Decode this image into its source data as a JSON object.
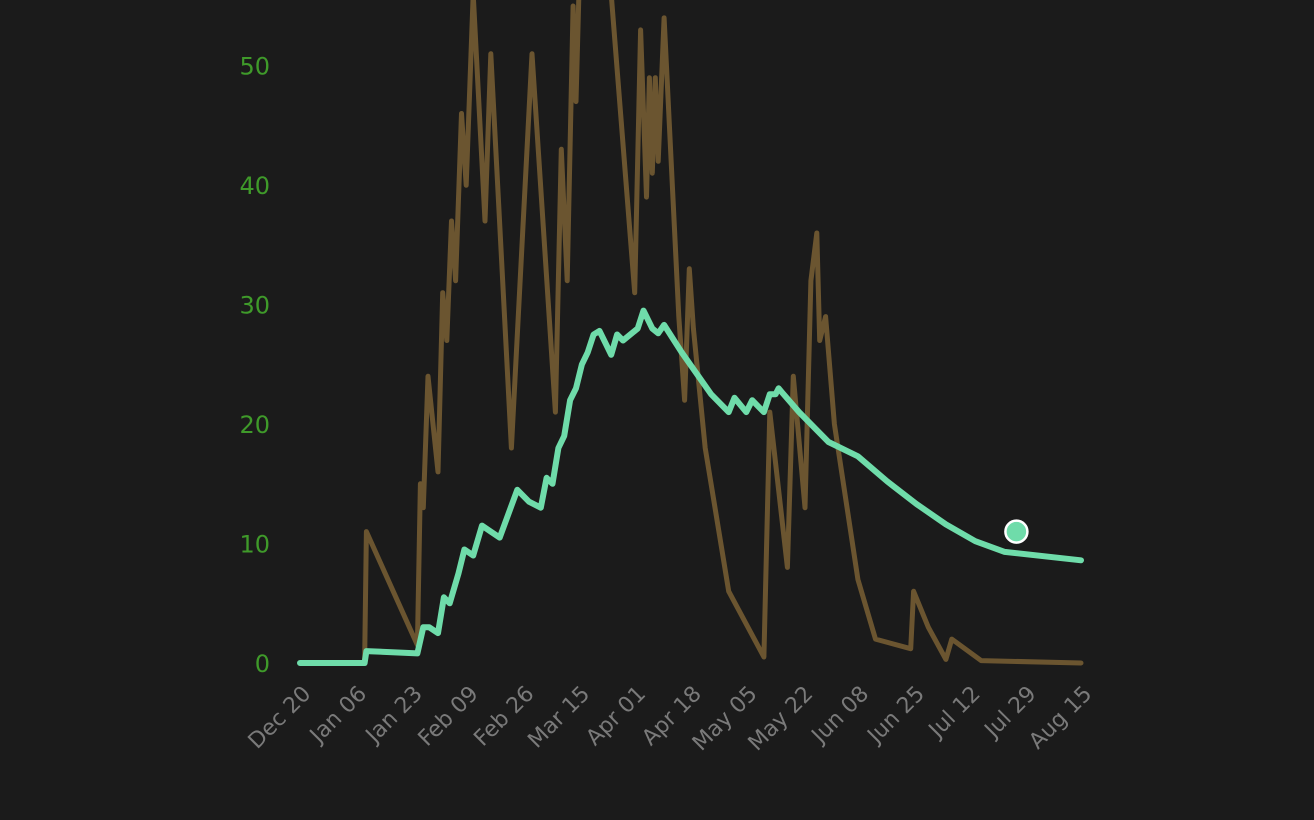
{
  "chart_data": {
    "type": "line",
    "title": "",
    "xlabel": "",
    "ylabel": "",
    "ylim": [
      0,
      55
    ],
    "yticks": [
      0,
      10,
      20,
      30,
      40,
      50
    ],
    "x_tick_labels": [
      "Dec 20",
      "Jan 06",
      "Jan 23",
      "Feb 09",
      "Feb 26",
      "Mar 15",
      "Apr 01",
      "Apr 18",
      "May 05",
      "May 22",
      "Jun 08",
      "Jun 25",
      "Jul 12",
      "Jul 29",
      "Aug 15"
    ],
    "grid": false,
    "legend": "none",
    "colors": {
      "daily": "#6b5530",
      "smoothed": "#6fdcaa",
      "ytick": "#3f9a2a",
      "xtick": "#7a7a7a",
      "background": "#1b1b1b",
      "marker": "#ffffff"
    },
    "series": [
      {
        "role": "daily",
        "points": [
          [
            0,
            0
          ],
          [
            11,
            0
          ],
          [
            11.3,
            11
          ],
          [
            20,
            1.5
          ],
          [
            20.5,
            15
          ],
          [
            21,
            13
          ],
          [
            21.8,
            24
          ],
          [
            23.5,
            16
          ],
          [
            24.3,
            31
          ],
          [
            25,
            27
          ],
          [
            25.8,
            37
          ],
          [
            26.5,
            32
          ],
          [
            27.5,
            46
          ],
          [
            28.3,
            40
          ],
          [
            29.5,
            56
          ],
          [
            31.5,
            37
          ],
          [
            32.5,
            51
          ],
          [
            36,
            18
          ],
          [
            39.5,
            51
          ],
          [
            43.5,
            21
          ],
          [
            44.5,
            43
          ],
          [
            45.5,
            32
          ],
          [
            46.5,
            55
          ],
          [
            47,
            47
          ],
          [
            47.5,
            56
          ],
          [
            49,
            56
          ],
          [
            53,
            56
          ],
          [
            57,
            31
          ],
          [
            58,
            53
          ],
          [
            59,
            39
          ],
          [
            59.5,
            49
          ],
          [
            60,
            41
          ],
          [
            60.5,
            49
          ],
          [
            61,
            42
          ],
          [
            62,
            54
          ],
          [
            64.5,
            29
          ],
          [
            65.5,
            22
          ],
          [
            66.3,
            33
          ],
          [
            67,
            28
          ],
          [
            69,
            18
          ],
          [
            73,
            6
          ],
          [
            79,
            0.5
          ],
          [
            80,
            21
          ],
          [
            83,
            8
          ],
          [
            84,
            24
          ],
          [
            86,
            13
          ],
          [
            87,
            32
          ],
          [
            88,
            36
          ],
          [
            88.5,
            27
          ],
          [
            89.5,
            29
          ],
          [
            91,
            20
          ],
          [
            95,
            7
          ],
          [
            98,
            2
          ],
          [
            104,
            1.2
          ],
          [
            104.5,
            6
          ],
          [
            107,
            3
          ],
          [
            110,
            0.3
          ],
          [
            111,
            2
          ],
          [
            116,
            0.2
          ],
          [
            133,
            0
          ]
        ]
      },
      {
        "role": "smoothed",
        "points": [
          [
            0,
            0
          ],
          [
            11,
            0
          ],
          [
            11.3,
            1
          ],
          [
            20,
            0.8
          ],
          [
            21,
            3
          ],
          [
            22,
            3
          ],
          [
            23.5,
            2.5
          ],
          [
            24.5,
            5.5
          ],
          [
            25.5,
            5
          ],
          [
            27,
            7.5
          ],
          [
            28,
            9.5
          ],
          [
            29.5,
            9
          ],
          [
            31,
            11.5
          ],
          [
            32.5,
            11
          ],
          [
            34,
            10.5
          ],
          [
            37,
            14.5
          ],
          [
            39,
            13.5
          ],
          [
            41,
            13
          ],
          [
            42,
            15.5
          ],
          [
            43,
            15
          ],
          [
            44,
            18
          ],
          [
            45,
            19
          ],
          [
            46,
            22
          ],
          [
            47,
            23
          ],
          [
            48,
            25
          ],
          [
            49,
            26
          ],
          [
            50,
            27.5
          ],
          [
            51,
            27.8
          ],
          [
            52,
            26.8
          ],
          [
            53,
            25.8
          ],
          [
            54,
            27.5
          ],
          [
            55,
            27
          ],
          [
            57.5,
            28
          ],
          [
            58.5,
            29.5
          ],
          [
            60,
            28
          ],
          [
            61,
            27.6
          ],
          [
            62,
            28.3
          ],
          [
            65,
            26
          ],
          [
            70,
            22.5
          ],
          [
            73,
            21
          ],
          [
            74,
            22.2
          ],
          [
            76,
            21
          ],
          [
            77,
            22
          ],
          [
            78,
            21.5
          ],
          [
            79,
            21
          ],
          [
            80,
            22.5
          ],
          [
            81,
            22.5
          ],
          [
            81.5,
            23
          ],
          [
            82,
            22.7
          ],
          [
            85,
            21
          ],
          [
            90,
            18.5
          ],
          [
            95,
            17.3
          ],
          [
            100,
            15.2
          ],
          [
            105,
            13.3
          ],
          [
            110,
            11.6
          ],
          [
            115,
            10.2
          ],
          [
            120,
            9.3
          ],
          [
            133,
            8.6
          ]
        ]
      }
    ],
    "x_range": [
      0,
      133
    ],
    "marker_point": [
      122,
      11
    ]
  }
}
